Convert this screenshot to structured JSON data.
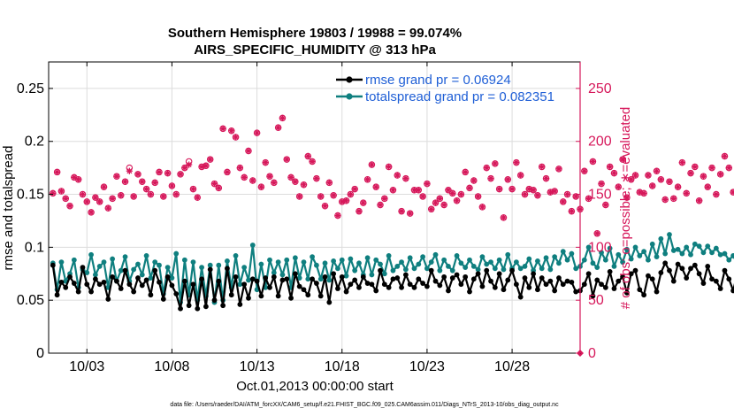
{
  "chart_data": {
    "type": "line",
    "title_line1": "Southern Hemisphere 19803 / 19988 = 99.074%",
    "title_line2": "AIRS_SPECIFIC_HUMIDITY @ 313 hPa",
    "xlabel": "Oct.01,2013 00:00:00 start",
    "ylabel_left": "rmse and totalspread",
    "ylabel_right": "# of obs: o=possible; ∗=evaluated",
    "footer": "data file: /Users/raeder/DAI/ATM_forcXX/CAM6_setup/f.e21.FHIST_BGC.f09_025.CAM6assim.011/Diags_NTrS_2013-10/obs_diag_output.nc",
    "xlim": [
      0.75,
      32.0
    ],
    "ylim_left": [
      0,
      0.275
    ],
    "ylim_right": [
      0,
      275
    ],
    "x_ticks": [
      3,
      8,
      13,
      18,
      23,
      28
    ],
    "x_tick_labels": [
      "10/03",
      "10/08",
      "10/13",
      "10/18",
      "10/23",
      "10/28"
    ],
    "y_left_ticks": [
      0,
      0.05,
      0.1,
      0.15,
      0.2,
      0.25
    ],
    "y_left_tick_labels": [
      "0",
      "0.05",
      "0.1",
      "0.15",
      "0.2",
      "0.25"
    ],
    "y_right_ticks": [
      0,
      50,
      100,
      150,
      200,
      250
    ],
    "y_right_tick_labels": [
      "0",
      "50",
      "100",
      "150",
      "200",
      "250"
    ],
    "x_start": 1.0,
    "x_step": 0.25,
    "legend": [
      "rmse grand pr = 0.06924",
      "totalspread grand pr = 0.082351"
    ],
    "colors": {
      "rmse": "#000000",
      "totalspread": "#0f7f7f",
      "obs": "#d6175a",
      "legend_text": "#1f5fd6",
      "grid": "#dcdcdc"
    },
    "series": [
      {
        "name": "rmse",
        "values": [
          0.083,
          0.055,
          0.067,
          0.062,
          0.072,
          0.066,
          0.058,
          0.081,
          0.065,
          0.058,
          0.07,
          0.065,
          0.067,
          0.051,
          0.072,
          0.068,
          0.061,
          0.078,
          0.065,
          0.058,
          0.071,
          0.064,
          0.069,
          0.055,
          0.078,
          0.067,
          0.051,
          0.072,
          0.064,
          0.056,
          0.042,
          0.068,
          0.045,
          0.065,
          0.042,
          0.07,
          0.044,
          0.079,
          0.05,
          0.068,
          0.045,
          0.08,
          0.055,
          0.072,
          0.046,
          0.065,
          0.052,
          0.07,
          0.068,
          0.054,
          0.071,
          0.062,
          0.072,
          0.054,
          0.069,
          0.07,
          0.052,
          0.075,
          0.063,
          0.06,
          0.055,
          0.07,
          0.066,
          0.054,
          0.072,
          0.048,
          0.075,
          0.061,
          0.072,
          0.058,
          0.065,
          0.069,
          0.062,
          0.072,
          0.066,
          0.065,
          0.059,
          0.078,
          0.065,
          0.062,
          0.07,
          0.071,
          0.062,
          0.074,
          0.065,
          0.062,
          0.07,
          0.066,
          0.063,
          0.078,
          0.068,
          0.064,
          0.072,
          0.059,
          0.071,
          0.074,
          0.065,
          0.072,
          0.058,
          0.07,
          0.075,
          0.063,
          0.078,
          0.068,
          0.062,
          0.075,
          0.06,
          0.069,
          0.078,
          0.065,
          0.053,
          0.071,
          0.062,
          0.075,
          0.06,
          0.071,
          0.065,
          0.068,
          0.059,
          0.071,
          0.065,
          0.068,
          0.067,
          0.058,
          0.059,
          0.065,
          0.075,
          0.054,
          0.069,
          0.065,
          0.062,
          0.077,
          0.061,
          0.068,
          0.072,
          0.057,
          0.075,
          0.078,
          0.06,
          0.055,
          0.073,
          0.07,
          0.058,
          0.076,
          0.085,
          0.078,
          0.068,
          0.084,
          0.08,
          0.071,
          0.08,
          0.083,
          0.075,
          0.066,
          0.082,
          0.07,
          0.068,
          0.061,
          0.078,
          0.07,
          0.059,
          0.076,
          0.066,
          0.057,
          0.072,
          0.053,
          0.074,
          0.063,
          0.07,
          0.072
        ]
      },
      {
        "name": "totalspread",
        "values": [
          0.085,
          0.06,
          0.086,
          0.068,
          0.075,
          0.088,
          0.062,
          0.079,
          0.076,
          0.093,
          0.074,
          0.082,
          0.086,
          0.062,
          0.089,
          0.068,
          0.078,
          0.091,
          0.068,
          0.079,
          0.084,
          0.074,
          0.092,
          0.071,
          0.086,
          0.083,
          0.056,
          0.081,
          0.071,
          0.094,
          0.048,
          0.088,
          0.055,
          0.086,
          0.05,
          0.081,
          0.054,
          0.083,
          0.048,
          0.083,
          0.05,
          0.087,
          0.062,
          0.092,
          0.065,
          0.081,
          0.069,
          0.102,
          0.06,
          0.084,
          0.062,
          0.088,
          0.076,
          0.086,
          0.074,
          0.088,
          0.062,
          0.09,
          0.071,
          0.086,
          0.07,
          0.091,
          0.083,
          0.07,
          0.085,
          0.069,
          0.087,
          0.08,
          0.088,
          0.073,
          0.089,
          0.078,
          0.085,
          0.074,
          0.09,
          0.074,
          0.088,
          0.084,
          0.075,
          0.092,
          0.078,
          0.082,
          0.086,
          0.079,
          0.09,
          0.08,
          0.084,
          0.091,
          0.08,
          0.086,
          0.093,
          0.078,
          0.088,
          0.082,
          0.078,
          0.092,
          0.085,
          0.081,
          0.088,
          0.082,
          0.079,
          0.091,
          0.084,
          0.086,
          0.08,
          0.088,
          0.079,
          0.093,
          0.08,
          0.086,
          0.08,
          0.082,
          0.089,
          0.078,
          0.087,
          0.08,
          0.09,
          0.079,
          0.091,
          0.085,
          0.096,
          0.088,
          0.094,
          0.08,
          0.082,
          0.088,
          0.1,
          0.085,
          0.081,
          0.095,
          0.088,
          0.099,
          0.082,
          0.093,
          0.086,
          0.098,
          0.089,
          0.1,
          0.092,
          0.096,
          0.088,
          0.103,
          0.091,
          0.108,
          0.094,
          0.112,
          0.097,
          0.098,
          0.094,
          0.1,
          0.093,
          0.103,
          0.101,
          0.095,
          0.101,
          0.095,
          0.099,
          0.093,
          0.094,
          0.088,
          0.092,
          0.084,
          0.093,
          0.087,
          0.095,
          0.09,
          0.096,
          0.086,
          0.094,
          0.092,
          0.097,
          0.088
        ]
      },
      {
        "name": "obs_possible",
        "values": [
          151,
          171,
          153,
          146,
          139,
          166,
          164,
          150,
          143,
          133,
          147,
          143,
          157,
          137,
          146,
          167,
          149,
          162,
          175,
          148,
          169,
          162,
          155,
          150,
          161,
          171,
          148,
          170,
          158,
          150,
          169,
          175,
          181,
          155,
          147,
          176,
          177,
          183,
          160,
          156,
          212,
          171,
          210,
          204,
          175,
          166,
          191,
          163,
          208,
          157,
          180,
          167,
          161,
          213,
          222,
          183,
          166,
          162,
          148,
          159,
          186,
          181,
          165,
          148,
          139,
          161,
          149,
          130,
          143,
          144,
          150,
          155,
          134,
          142,
          164,
          178,
          157,
          140,
          146,
          176,
          154,
          168,
          134,
          165,
          132,
          154,
          154,
          148,
          160,
          136,
          142,
          146,
          140,
          154,
          151,
          144,
          150,
          171,
          156,
          163,
          148,
          138,
          175,
          165,
          179,
          155,
          128,
          164,
          155,
          180,
          168,
          150,
          155,
          154,
          149,
          176,
          165,
          152,
          153,
          174,
          143,
          150,
          134,
          148,
          136,
          172,
          146,
          181,
          113,
          160,
          140,
          176,
          170,
          157,
          183,
          147,
          164,
          168,
          152,
          151,
          168,
          158,
          172,
          164,
          145,
          162,
          146,
          157,
          180,
          151,
          170,
          176,
          144,
          167,
          157,
          175,
          150,
          169,
          186,
          175,
          152,
          188,
          170,
          168,
          177,
          154,
          179,
          176,
          186,
          164,
          172,
          180,
          177
        ]
      },
      {
        "name": "obs_evaluated",
        "values": [
          151,
          171,
          153,
          146,
          139,
          166,
          164,
          150,
          143,
          133,
          147,
          143,
          157,
          137,
          146,
          167,
          149,
          162,
          172,
          148,
          169,
          162,
          155,
          150,
          161,
          171,
          148,
          170,
          158,
          150,
          169,
          175,
          178,
          155,
          147,
          176,
          177,
          183,
          160,
          156,
          212,
          171,
          210,
          204,
          175,
          166,
          191,
          163,
          208,
          157,
          180,
          167,
          161,
          213,
          222,
          183,
          166,
          162,
          148,
          159,
          186,
          181,
          165,
          148,
          139,
          161,
          149,
          130,
          143,
          144,
          150,
          155,
          134,
          142,
          164,
          178,
          157,
          140,
          146,
          176,
          154,
          168,
          134,
          165,
          132,
          154,
          154,
          148,
          160,
          136,
          142,
          146,
          140,
          154,
          151,
          144,
          150,
          171,
          156,
          163,
          148,
          138,
          175,
          165,
          179,
          155,
          128,
          164,
          155,
          180,
          168,
          150,
          155,
          154,
          149,
          176,
          165,
          152,
          153,
          174,
          143,
          150,
          134,
          148,
          136,
          172,
          146,
          181,
          113,
          160,
          140,
          176,
          170,
          157,
          183,
          147,
          164,
          168,
          152,
          151,
          168,
          158,
          172,
          164,
          145,
          162,
          146,
          157,
          180,
          151,
          170,
          176,
          144,
          167,
          157,
          175,
          150,
          169,
          186,
          175,
          152,
          188,
          170,
          168,
          177,
          154,
          179,
          176,
          186,
          164,
          172,
          180,
          177
        ]
      }
    ]
  }
}
